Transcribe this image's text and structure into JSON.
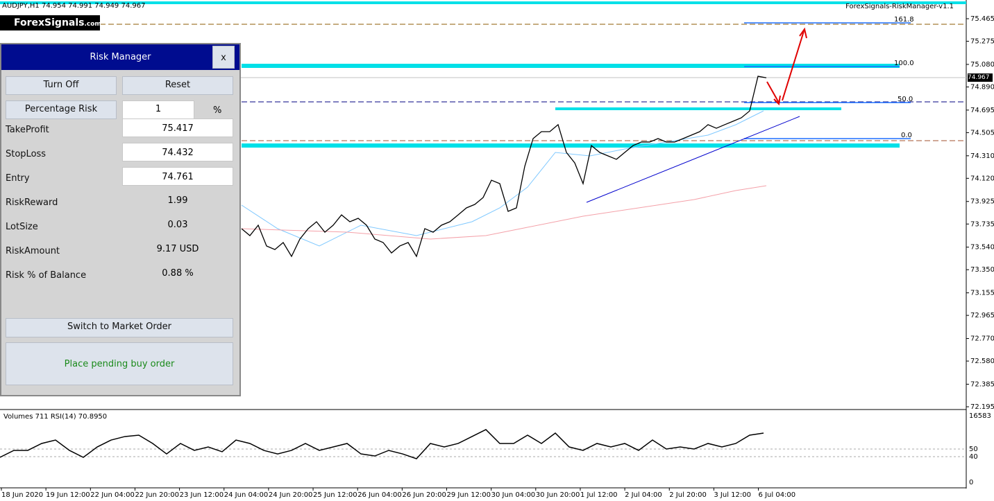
{
  "header": {
    "symbol_info": "AUDJPY,H1  74.954 74.991 74.949 74.967",
    "indicator_name": "ForexSignals-RiskManager-v1.1",
    "logo_main": "ForexSignals",
    "logo_suffix": ".com"
  },
  "chart": {
    "price_axis": [
      "75.465",
      "75.275",
      "75.080",
      "74.890",
      "74.695",
      "74.505",
      "74.310",
      "74.120",
      "73.925",
      "73.735",
      "73.540",
      "73.350",
      "73.155",
      "72.965",
      "72.770",
      "72.580",
      "72.385",
      "72.195"
    ],
    "current_price": "74.967",
    "time_axis": [
      "18 Jun 2020",
      "19 Jun 12:00",
      "22 Jun 04:00",
      "22 Jun 20:00",
      "23 Jun 12:00",
      "24 Jun 04:00",
      "24 Jun 20:00",
      "25 Jun 12:00",
      "26 Jun 04:00",
      "26 Jun 20:00",
      "29 Jun 12:00",
      "30 Jun 04:00",
      "30 Jun 20:00",
      "1 Jul 12:00",
      "2 Jul 04:00",
      "2 Jul 20:00",
      "3 Jul 12:00",
      "6 Jul 04:00"
    ],
    "fib_levels": [
      "161.8",
      "100.0",
      "50.0",
      "0.0"
    ],
    "close_series": [
      73.696,
      73.637,
      73.725,
      73.55,
      73.52,
      73.579,
      73.462,
      73.608,
      73.696,
      73.754,
      73.666,
      73.725,
      73.812,
      73.754,
      73.783,
      73.725,
      73.608,
      73.579,
      73.491,
      73.55,
      73.579,
      73.462,
      73.696,
      73.666,
      73.725,
      73.754,
      73.812,
      73.871,
      73.9,
      73.958,
      74.104,
      74.075,
      73.842,
      73.871,
      74.221,
      74.455,
      74.513,
      74.513,
      74.572,
      74.338,
      74.25,
      74.075,
      74.396,
      74.338,
      74.309,
      74.28,
      74.338,
      74.396,
      74.426,
      74.426,
      74.455,
      74.426,
      74.426,
      74.455,
      74.484,
      74.513,
      74.572,
      74.542,
      74.572,
      74.601,
      74.63,
      74.688,
      74.98,
      74.967
    ],
    "indicator_header": "Volumes 711  RSI(14) 70.8950",
    "sub_axis": [
      "16583",
      "50",
      "40",
      "0"
    ],
    "rsi_series": [
      39.1,
      48.2,
      48.2,
      57.3,
      61.8,
      48.2,
      39.1,
      52.7,
      61.8,
      66.4,
      68.2,
      57.3,
      43.6,
      57.3,
      48.2,
      52.7,
      46.4,
      61.8,
      57.3,
      48.2,
      43.6,
      48.2,
      57.3,
      48.2,
      52.7,
      57.3,
      43.6,
      40.9,
      48.2,
      43.6,
      37.3,
      57.3,
      52.7,
      57.3,
      66.4,
      75.5,
      57.3,
      57.3,
      68.2,
      57.3,
      70.9,
      52.7,
      48.2,
      57.3,
      52.7,
      57.3,
      48.2,
      61.8,
      50,
      52.7,
      50,
      57.3,
      52.7,
      57.3,
      68.2,
      70.9
    ]
  },
  "panel": {
    "title": "Risk Manager",
    "close": "x",
    "turn_off": "Turn Off",
    "reset": "Reset",
    "percentage_risk": "Percentage Risk",
    "risk_input": "1",
    "risk_unit": "%",
    "rows": [
      [
        "TakeProfit",
        "75.417"
      ],
      [
        "StopLoss",
        "74.432"
      ],
      [
        "Entry",
        "74.761"
      ],
      [
        "RiskReward",
        "1.99"
      ],
      [
        "LotSize",
        "0.03"
      ],
      [
        "RiskAmount",
        "9.17 USD"
      ],
      [
        "Risk % of Balance",
        "0.88 %"
      ]
    ],
    "switch_button": "Switch to Market Order",
    "place_button": "Place pending buy order"
  }
}
